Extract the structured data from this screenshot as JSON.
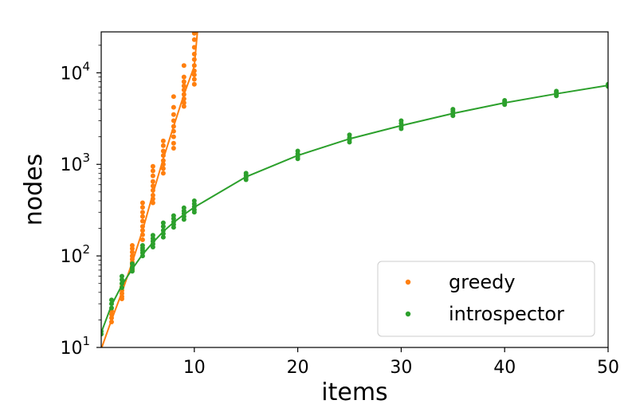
{
  "chart_data": {
    "type": "scatter",
    "xlabel": "items",
    "ylabel": "nodes",
    "xlim": [
      1,
      50
    ],
    "ylim": [
      10,
      28000
    ],
    "yscale": "log",
    "grid": false,
    "legend_placement": "bottom-right",
    "x_ticks": [
      10,
      20,
      30,
      40,
      50
    ],
    "y_ticks": [
      {
        "value": 10,
        "label": "10",
        "exp": "1"
      },
      {
        "value": 100,
        "label": "10",
        "exp": "2"
      },
      {
        "value": 1000,
        "label": "10",
        "exp": "3"
      },
      {
        "value": 10000,
        "label": "10",
        "exp": "4"
      }
    ],
    "series": [
      {
        "name": "greedy",
        "color": "#ff7f0e",
        "points": [
          [
            2,
            19
          ],
          [
            2,
            21
          ],
          [
            2,
            23
          ],
          [
            2,
            25
          ],
          [
            3,
            34
          ],
          [
            3,
            36
          ],
          [
            3,
            39
          ],
          [
            3,
            42
          ],
          [
            3,
            46
          ],
          [
            4,
            70
          ],
          [
            4,
            78
          ],
          [
            4,
            85
          ],
          [
            4,
            92
          ],
          [
            4,
            100
          ],
          [
            4,
            110
          ],
          [
            4,
            120
          ],
          [
            4,
            130
          ],
          [
            5,
            150
          ],
          [
            5,
            170
          ],
          [
            5,
            190
          ],
          [
            5,
            210
          ],
          [
            5,
            240
          ],
          [
            5,
            270
          ],
          [
            5,
            300
          ],
          [
            5,
            340
          ],
          [
            5,
            380
          ],
          [
            6,
            380
          ],
          [
            6,
            420
          ],
          [
            6,
            460
          ],
          [
            6,
            520
          ],
          [
            6,
            580
          ],
          [
            6,
            650
          ],
          [
            6,
            750
          ],
          [
            6,
            850
          ],
          [
            6,
            950
          ],
          [
            7,
            800
          ],
          [
            7,
            900
          ],
          [
            7,
            1000
          ],
          [
            7,
            1100
          ],
          [
            7,
            1250
          ],
          [
            7,
            1400
          ],
          [
            7,
            1600
          ],
          [
            7,
            1800
          ],
          [
            8,
            1500
          ],
          [
            8,
            1700
          ],
          [
            8,
            2000
          ],
          [
            8,
            2300
          ],
          [
            8,
            2600
          ],
          [
            8,
            3000
          ],
          [
            8,
            3500
          ],
          [
            8,
            4200
          ],
          [
            8,
            5500
          ],
          [
            9,
            4300
          ],
          [
            9,
            4700
          ],
          [
            9,
            5200
          ],
          [
            9,
            5800
          ],
          [
            9,
            6500
          ],
          [
            9,
            7200
          ],
          [
            9,
            8000
          ],
          [
            9,
            9000
          ],
          [
            9,
            12000
          ],
          [
            10,
            7500
          ],
          [
            10,
            8500
          ],
          [
            10,
            9500
          ],
          [
            10,
            10500
          ],
          [
            10,
            12000
          ],
          [
            10,
            14000
          ],
          [
            10,
            16000
          ],
          [
            10,
            19000
          ],
          [
            10,
            23000
          ],
          [
            10,
            27000
          ]
        ],
        "trend": [
          [
            1,
            9.6
          ],
          [
            2,
            20
          ],
          [
            3,
            40
          ],
          [
            4,
            85
          ],
          [
            5,
            190
          ],
          [
            6,
            480
          ],
          [
            7,
            1150
          ],
          [
            8,
            2600
          ],
          [
            9,
            5800
          ],
          [
            10,
            11800
          ],
          [
            10.3,
            28000
          ]
        ]
      },
      {
        "name": "introspector",
        "color": "#2ca02c",
        "points": [
          [
            1,
            14
          ],
          [
            1,
            15
          ],
          [
            2,
            27
          ],
          [
            2,
            30
          ],
          [
            2,
            33
          ],
          [
            3,
            45
          ],
          [
            3,
            50
          ],
          [
            3,
            55
          ],
          [
            3,
            60
          ],
          [
            4,
            68
          ],
          [
            4,
            72
          ],
          [
            4,
            75
          ],
          [
            4,
            82
          ],
          [
            5,
            100
          ],
          [
            5,
            108
          ],
          [
            5,
            115
          ],
          [
            5,
            122
          ],
          [
            5,
            130
          ],
          [
            6,
            125
          ],
          [
            6,
            135
          ],
          [
            6,
            145
          ],
          [
            6,
            155
          ],
          [
            6,
            168
          ],
          [
            7,
            160
          ],
          [
            7,
            175
          ],
          [
            7,
            190
          ],
          [
            7,
            210
          ],
          [
            7,
            230
          ],
          [
            8,
            205
          ],
          [
            8,
            220
          ],
          [
            8,
            235
          ],
          [
            8,
            255
          ],
          [
            8,
            275
          ],
          [
            9,
            250
          ],
          [
            9,
            270
          ],
          [
            9,
            290
          ],
          [
            9,
            310
          ],
          [
            9,
            335
          ],
          [
            10,
            300
          ],
          [
            10,
            320
          ],
          [
            10,
            345
          ],
          [
            10,
            370
          ],
          [
            10,
            400
          ],
          [
            15,
            680
          ],
          [
            15,
            720
          ],
          [
            15,
            760
          ],
          [
            15,
            800
          ],
          [
            20,
            1150
          ],
          [
            20,
            1220
          ],
          [
            20,
            1300
          ],
          [
            20,
            1400
          ],
          [
            25,
            1750
          ],
          [
            25,
            1850
          ],
          [
            25,
            1950
          ],
          [
            25,
            2100
          ],
          [
            30,
            2450
          ],
          [
            30,
            2600
          ],
          [
            30,
            2800
          ],
          [
            30,
            3000
          ],
          [
            35,
            3400
          ],
          [
            35,
            3600
          ],
          [
            35,
            3800
          ],
          [
            35,
            4000
          ],
          [
            40,
            4500
          ],
          [
            40,
            4700
          ],
          [
            40,
            4850
          ],
          [
            40,
            5000
          ],
          [
            45,
            5600
          ],
          [
            45,
            5850
          ],
          [
            45,
            6100
          ],
          [
            45,
            6300
          ],
          [
            50,
            7100
          ],
          [
            50,
            7300
          ],
          [
            50,
            7500
          ]
        ],
        "trend": [
          [
            1,
            14.5
          ],
          [
            2,
            29
          ],
          [
            3,
            48
          ],
          [
            4,
            72
          ],
          [
            5,
            104
          ],
          [
            6,
            140
          ],
          [
            7,
            185
          ],
          [
            8,
            232
          ],
          [
            9,
            283
          ],
          [
            10,
            340
          ],
          [
            15,
            730
          ],
          [
            20,
            1250
          ],
          [
            25,
            1900
          ],
          [
            30,
            2650
          ],
          [
            35,
            3600
          ],
          [
            40,
            4700
          ],
          [
            45,
            5900
          ],
          [
            50,
            7300
          ]
        ]
      }
    ]
  }
}
